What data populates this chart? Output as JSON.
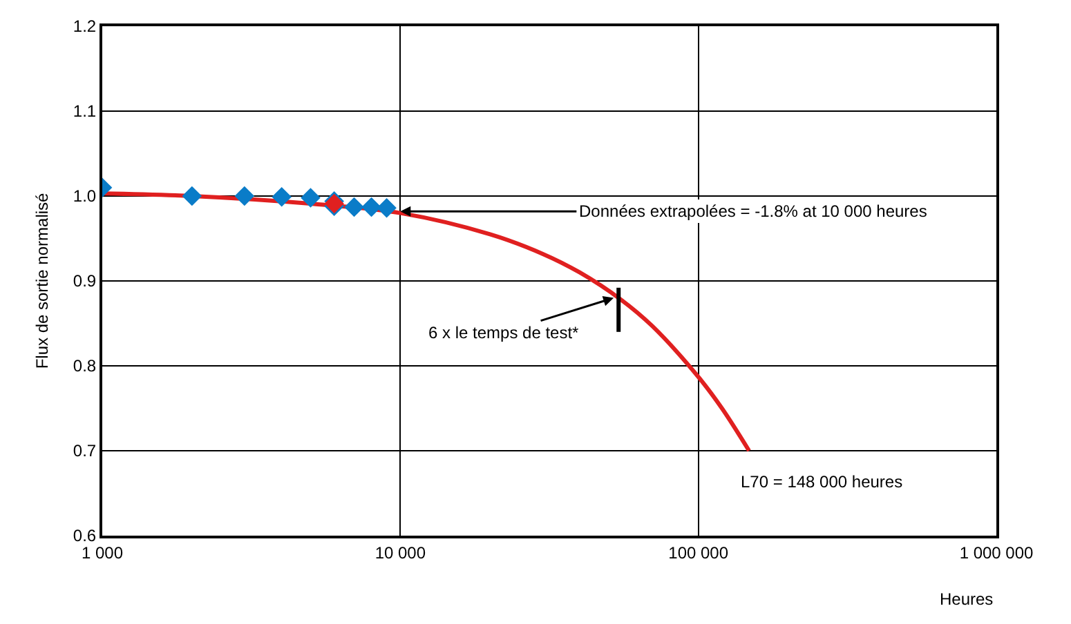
{
  "chart_data": {
    "type": "scatter",
    "xlabel": "Heures",
    "ylabel": "Flux de sortie normalisé",
    "log": "x",
    "grid": true,
    "marker": "diamond",
    "xlim": [
      1000,
      1000000
    ],
    "xticks": [
      {
        "value": 1000,
        "label": "1 000"
      },
      {
        "value": 10000,
        "label": "10 000"
      },
      {
        "value": 100000,
        "label": "100 000"
      },
      {
        "value": 1000000,
        "label": "1 000 000"
      }
    ],
    "ylim": [
      0.6,
      1.2
    ],
    "yticks": [
      {
        "value": 0.6,
        "label": "0.6"
      },
      {
        "value": 0.7,
        "label": "0.7"
      },
      {
        "value": 0.8,
        "label": "0.8"
      },
      {
        "value": 0.9,
        "label": "0.9"
      },
      {
        "value": 1.0,
        "label": "1.0"
      },
      {
        "value": 1.1,
        "label": "1.1"
      },
      {
        "value": 1.2,
        "label": "1.2"
      }
    ],
    "series": [
      {
        "type": "line",
        "color": "#e02020",
        "marker": "none",
        "x": [
          1000,
          2000,
          5000,
          10000,
          20000,
          30000,
          40000,
          55000,
          70000,
          100000,
          120000,
          148000
        ],
        "values": [
          1.003,
          1.0,
          0.991,
          0.98,
          0.955,
          0.932,
          0.91,
          0.878,
          0.847,
          0.787,
          0.75,
          0.7
        ]
      },
      {
        "color": "#0a7cc8",
        "x": [
          1000,
          2000,
          3000,
          4000,
          5000,
          6000,
          6000,
          7000,
          8000,
          9000,
          6000
        ],
        "values": [
          1.01,
          1.0,
          1.0,
          0.999,
          0.998,
          0.994,
          0.988,
          0.987,
          0.987,
          0.986,
          0.991
        ],
        "colors": [
          "#0a7cc8",
          "#0a7cc8",
          "#0a7cc8",
          "#0a7cc8",
          "#0a7cc8",
          "#0a7cc8",
          "#0a7cc8",
          "#0a7cc8",
          "#0a7cc8",
          "#0a7cc8",
          "#e02020"
        ]
      },
      {
        "type": "line",
        "color": "#000000",
        "marker": "none",
        "x": [
          54000,
          54000
        ],
        "values": [
          0.84,
          0.892
        ]
      }
    ],
    "annotations": [
      {
        "text": "Données extrapolées = -1.8% at 10 000 heures",
        "x": 10000,
        "y": 0.982
      },
      {
        "text": "6 x le temps de test*",
        "x": 52000,
        "y": 0.88
      },
      {
        "text": "L70 = 148 000 heures",
        "x": 148000,
        "y": 0.7
      }
    ]
  }
}
